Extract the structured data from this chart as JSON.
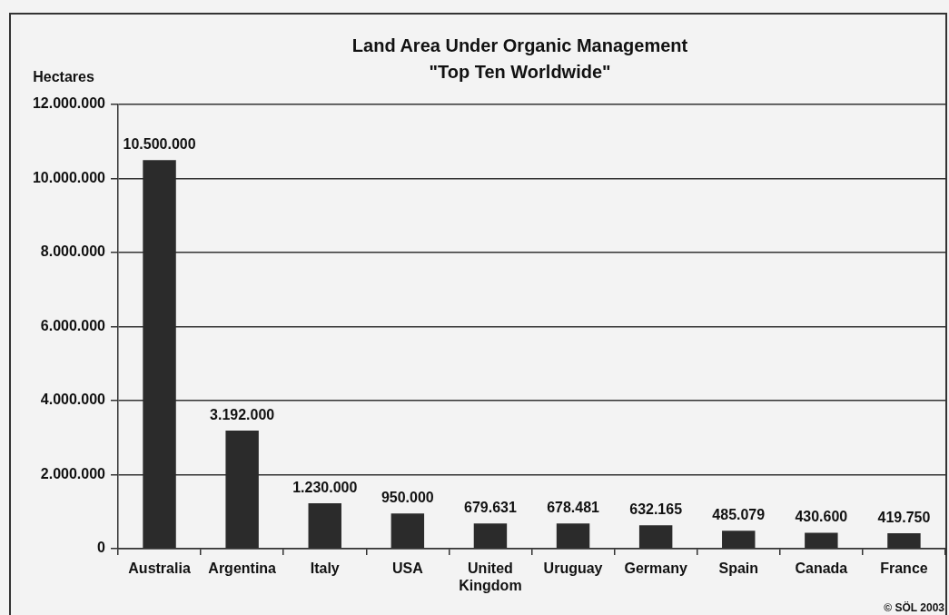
{
  "chart_data": {
    "type": "bar",
    "title": "Land Area Under Organic Management",
    "subtitle": "\"Top Ten Worldwide\"",
    "ylabel": "Hectares",
    "categories": [
      "Australia",
      "Argentina",
      "Italy",
      "USA",
      "United Kingdom",
      "Uruguay",
      "Germany",
      "Spain",
      "Canada",
      "France"
    ],
    "values": [
      10500000,
      3192000,
      1230000,
      950000,
      679631,
      678481,
      632165,
      485079,
      430600,
      419750
    ],
    "value_labels": [
      "10.500.000",
      "3.192.000",
      "1.230.000",
      "950.000",
      "679.631",
      "678.481",
      "632.165",
      "485.079",
      "430.600",
      "419.750"
    ],
    "color": "#2b2b2b",
    "ylim": [
      0,
      12000000
    ],
    "yticks": [
      0,
      {
        "value": 2000000,
        "label": "2.000.000"
      },
      {
        "value": 4000000,
        "label": "4.000.000"
      },
      {
        "value": 6000000,
        "label": "6.000.000"
      },
      {
        "value": 8000000,
        "label": "8.000.000"
      },
      {
        "value": 10000000,
        "label": "10.000.000"
      },
      {
        "value": 12000000,
        "label": "12.000.000"
      }
    ],
    "grid": "y",
    "annotations": [
      "© SÖL 2003"
    ]
  }
}
